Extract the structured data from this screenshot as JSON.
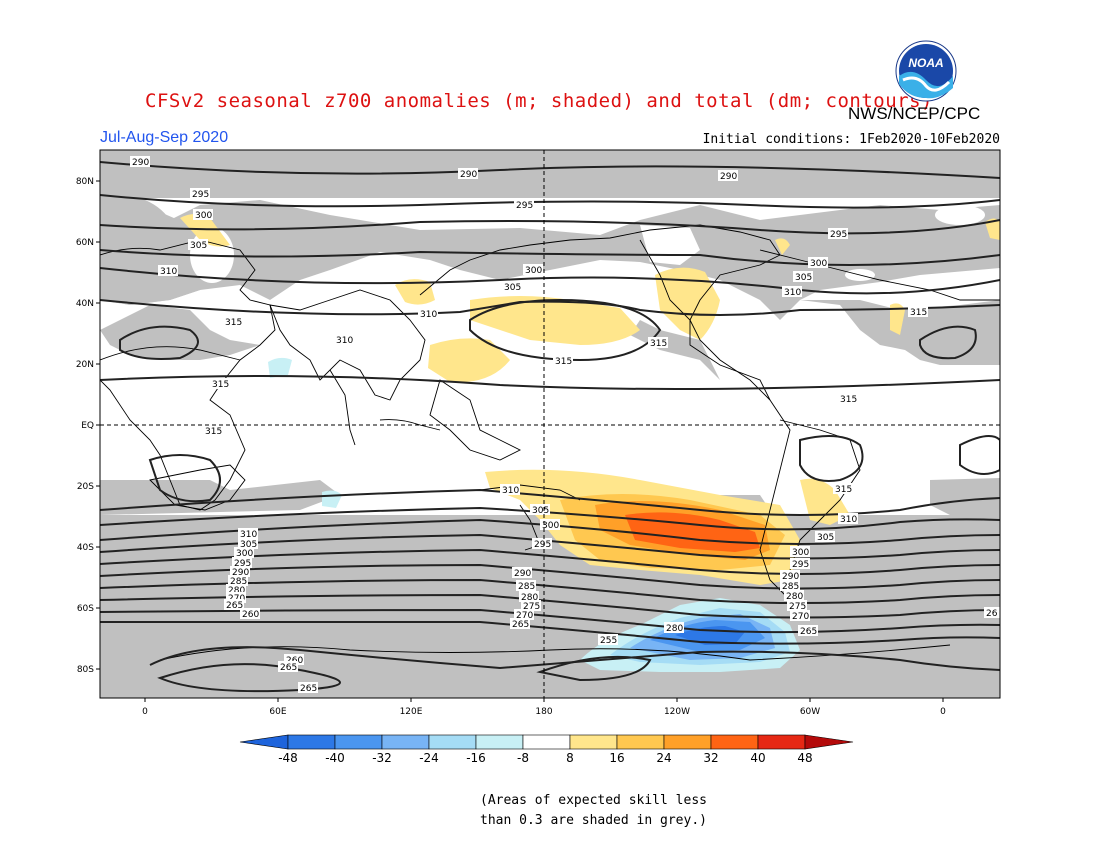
{
  "header": {
    "title": "CFSv2 seasonal z700 anomalies (m; shaded) and total (dm; contours)",
    "agency": "NWS/NCEP/CPC",
    "season": "Jul-Aug-Sep 2020",
    "initial_conditions": "Initial conditions: 1Feb2020-10Feb2020",
    "logo_text": "NOAA"
  },
  "map": {
    "projection": "cylindrical equidistant",
    "lat_ticks": [
      "80N",
      "60N",
      "40N",
      "20N",
      "EQ",
      "20S",
      "40S",
      "60S",
      "80S"
    ],
    "lon_ticks": [
      "0",
      "60E",
      "120E",
      "180",
      "120W",
      "60W",
      "0"
    ],
    "contour_labels": [
      "290",
      "295",
      "300",
      "305",
      "310",
      "315",
      "280",
      "275",
      "270",
      "265",
      "260",
      "255",
      "285"
    ],
    "skill_mask_color": "#c0c0c0",
    "land_outline_color": "#000000"
  },
  "colorbar": {
    "tick_labels": [
      "-48",
      "-40",
      "-32",
      "-24",
      "-16",
      "-8",
      "8",
      "16",
      "24",
      "32",
      "40",
      "48"
    ],
    "colors": [
      "#1e64dc",
      "#2d78e6",
      "#4b96f0",
      "#78b4f5",
      "#a5dcf5",
      "#c8f0f5",
      "#ffffff",
      "#ffe68c",
      "#ffc850",
      "#ffa028",
      "#ff6414",
      "#e62814",
      "#b40a0a"
    ]
  },
  "footnote": {
    "line1": "(Areas of expected skill less",
    "line2": "than 0.3 are shaded in grey.)"
  }
}
